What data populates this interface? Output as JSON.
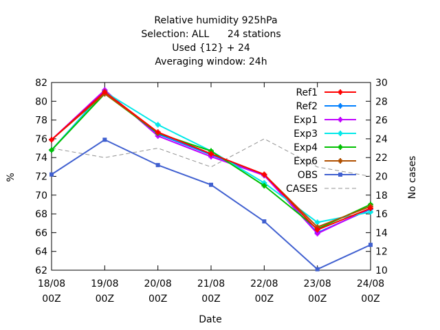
{
  "chart_data": {
    "type": "line",
    "title": [
      "Relative humidity 925hPa",
      "Selection: ALL      24 stations",
      "Used {12} + 24",
      "Averaging window: 24h"
    ],
    "xlabel": "Date",
    "ylabel": "%",
    "y2label": "No cases",
    "categories": [
      "18/08\n00Z",
      "19/08\n00Z",
      "20/08\n00Z",
      "21/08\n00Z",
      "22/08\n00Z",
      "23/08\n00Z",
      "24/08\n00Z"
    ],
    "ylim": [
      62,
      82
    ],
    "yticks": [
      62,
      64,
      66,
      68,
      70,
      72,
      74,
      76,
      78,
      80,
      82
    ],
    "y2lim": [
      10,
      30
    ],
    "y2ticks": [
      10,
      12,
      14,
      16,
      18,
      20,
      22,
      24,
      26,
      28,
      30
    ],
    "legend_position": "top-right",
    "grid": false,
    "series": [
      {
        "name": "Ref1",
        "color": "#ff0000",
        "axis": "y",
        "marker": "plus",
        "values": [
          75.9,
          81.0,
          76.7,
          74.4,
          72.2,
          66.3,
          68.6
        ]
      },
      {
        "name": "Ref2",
        "color": "#0080ff",
        "axis": "y",
        "marker": "plus",
        "values": [
          74.8,
          81.1,
          76.5,
          74.3,
          72.1,
          66.0,
          68.5
        ]
      },
      {
        "name": "Exp1",
        "color": "#c000ff",
        "axis": "y",
        "marker": "plus",
        "values": [
          75.9,
          81.2,
          76.3,
          74.1,
          72.1,
          65.9,
          68.6
        ]
      },
      {
        "name": "Exp3",
        "color": "#00e8e8",
        "axis": "y",
        "marker": "plus",
        "values": [
          74.8,
          81.0,
          77.5,
          74.7,
          71.3,
          67.1,
          68.2
        ]
      },
      {
        "name": "Exp4",
        "color": "#00c000",
        "axis": "y",
        "marker": "plus",
        "values": [
          74.8,
          80.8,
          76.6,
          74.7,
          71.0,
          66.4,
          69.0
        ]
      },
      {
        "name": "Exp6",
        "color": "#b05000",
        "axis": "y",
        "marker": "plus",
        "values": [
          75.9,
          80.8,
          76.7,
          74.4,
          72.2,
          66.6,
          68.8
        ]
      },
      {
        "name": "OBS",
        "color": "#4060d0",
        "axis": "y",
        "marker": "square",
        "values": [
          72.2,
          75.9,
          73.2,
          71.1,
          67.2,
          62.1,
          64.7
        ]
      },
      {
        "name": "CASES",
        "color": "#909090",
        "axis": "y2",
        "dashed": true,
        "values": [
          23,
          22,
          23,
          21,
          24,
          21,
          20
        ]
      }
    ]
  }
}
